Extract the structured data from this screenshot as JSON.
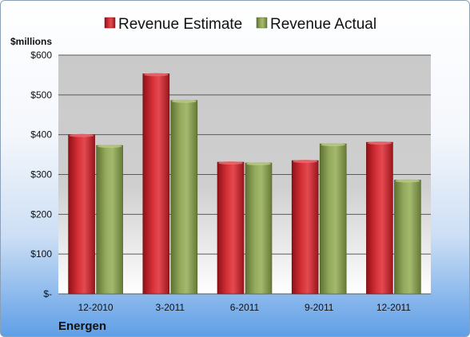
{
  "company_name": "Energen",
  "colors": {
    "estimate": "#c0262d",
    "actual": "#8ea255"
  },
  "chart_data": {
    "type": "bar",
    "title": "",
    "ylabel": "$millions",
    "xlabel": "",
    "categories": [
      "12-2010",
      "3-2011",
      "6-2011",
      "9-2011",
      "12-2011"
    ],
    "series": [
      {
        "name": "Revenue Estimate",
        "values": [
          400,
          553,
          331,
          335,
          381
        ]
      },
      {
        "name": "Revenue Actual",
        "values": [
          373,
          486,
          329,
          377,
          286
        ]
      }
    ],
    "ylim": [
      0,
      600
    ],
    "yticks": [
      0,
      100,
      200,
      300,
      400,
      500,
      600
    ],
    "ytick_labels": [
      "$-",
      "$100",
      "$200",
      "$300",
      "$400",
      "$500",
      "$600"
    ],
    "grid": true,
    "legend_position": "top"
  }
}
